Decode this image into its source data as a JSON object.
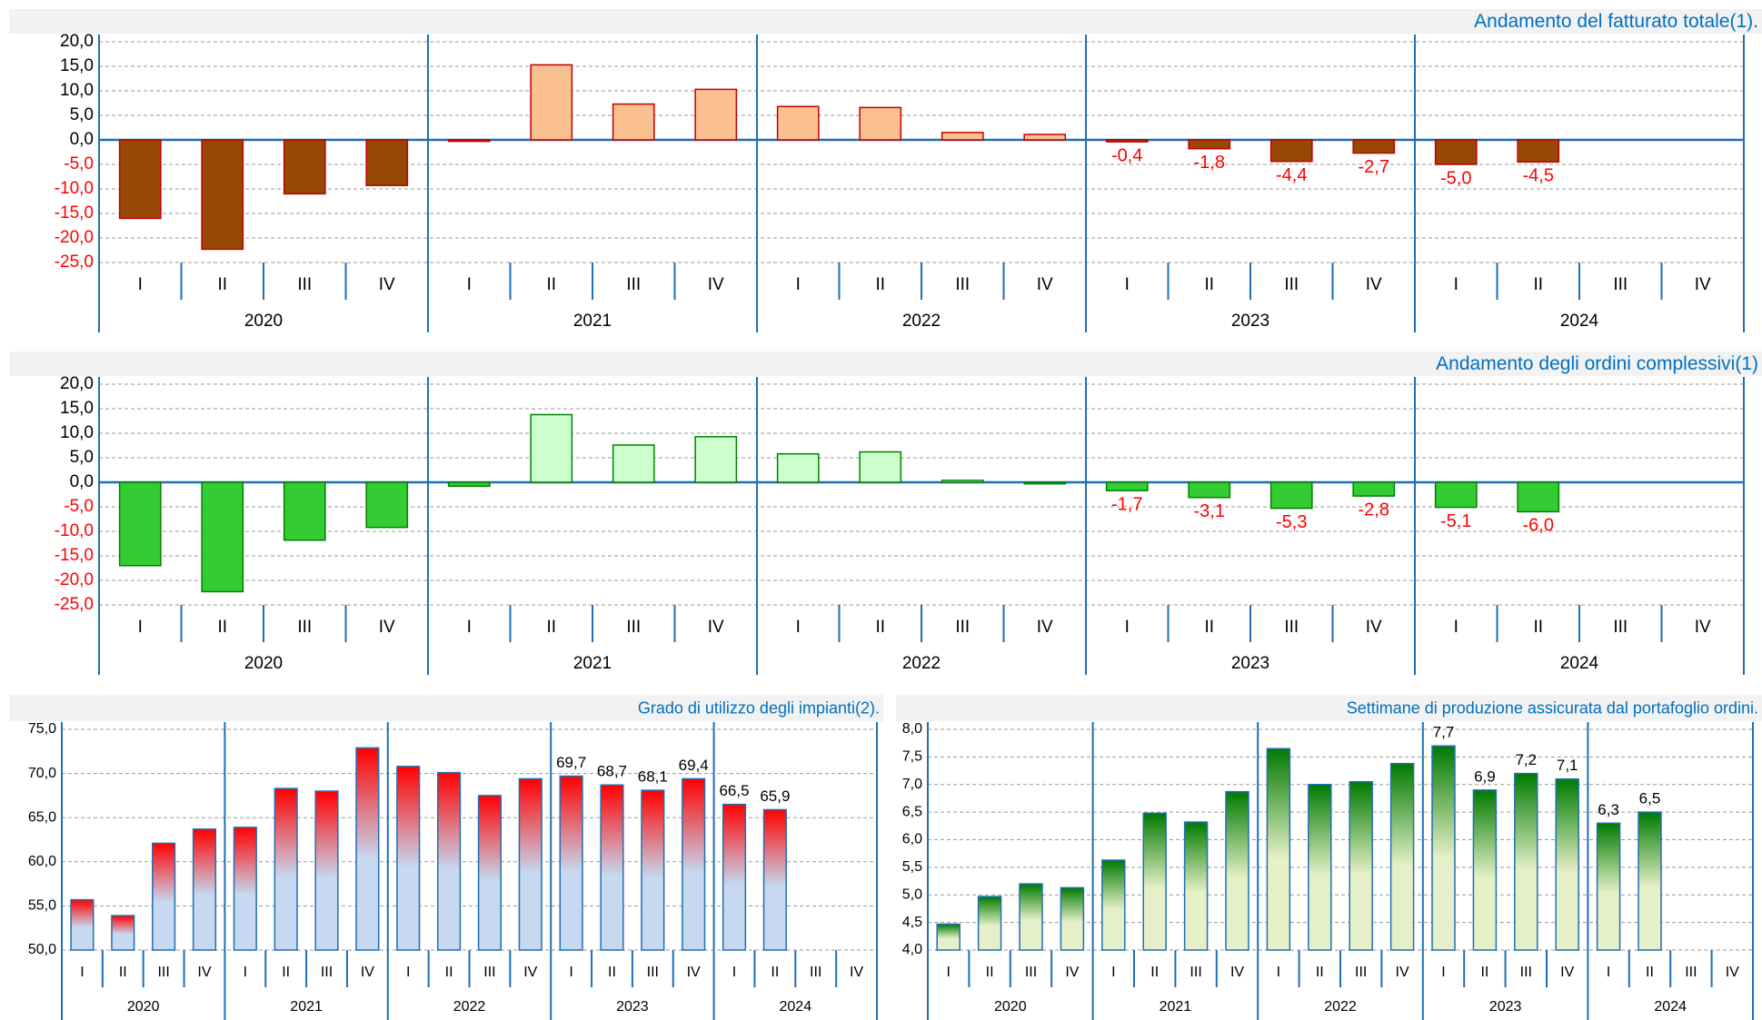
{
  "chart_data": [
    {
      "type": "bar",
      "title": "Andamento del fatturato totale(1).",
      "categories": [
        "I",
        "II",
        "III",
        "IV",
        "I",
        "II",
        "III",
        "IV",
        "I",
        "II",
        "III",
        "IV",
        "I",
        "II",
        "III",
        "IV",
        "I",
        "II",
        "III",
        "IV"
      ],
      "groups": [
        "2020",
        "2021",
        "2022",
        "2023",
        "2024"
      ],
      "values": [
        -16.0,
        -22.3,
        -11.0,
        -9.3,
        -0.3,
        15.3,
        7.3,
        10.3,
        6.8,
        6.6,
        1.5,
        1.1,
        -0.4,
        -1.8,
        -4.4,
        -2.7,
        -5.0,
        -4.5,
        null,
        null
      ],
      "value_labels": [
        null,
        null,
        null,
        null,
        null,
        null,
        null,
        null,
        null,
        null,
        null,
        null,
        "-0,4",
        "-1,8",
        "-4,4",
        "-2,7",
        "-5,0",
        "-4,5",
        null,
        null
      ],
      "ylim": [
        -25,
        20
      ],
      "yticks": [
        {
          "value": 20,
          "label": "20,0"
        },
        {
          "value": 15,
          "label": "15,0"
        },
        {
          "value": 10,
          "label": "10,0"
        },
        {
          "value": 5,
          "label": "5,0"
        },
        {
          "value": 0,
          "label": "0,0"
        },
        {
          "value": -5,
          "label": "-5,0"
        },
        {
          "value": -10,
          "label": "-10,0"
        },
        {
          "value": -15,
          "label": "-15,0"
        },
        {
          "value": -20,
          "label": "-20,0"
        },
        {
          "value": -25,
          "label": "-25,0"
        }
      ],
      "color_positive": "#fac090",
      "color_negative": "#974706",
      "edge_color": "#c00000",
      "grid": true
    },
    {
      "type": "bar",
      "title": "Andamento degli ordini complessivi(1)",
      "categories": [
        "I",
        "II",
        "III",
        "IV",
        "I",
        "II",
        "III",
        "IV",
        "I",
        "II",
        "III",
        "IV",
        "I",
        "II",
        "III",
        "IV",
        "I",
        "II",
        "III",
        "IV"
      ],
      "groups": [
        "2020",
        "2021",
        "2022",
        "2023",
        "2024"
      ],
      "values": [
        -17.0,
        -22.3,
        -11.8,
        -9.2,
        -0.8,
        13.8,
        7.6,
        9.3,
        5.8,
        6.2,
        0.4,
        -0.3,
        -1.7,
        -3.1,
        -5.3,
        -2.8,
        -5.1,
        -6.0,
        null,
        null
      ],
      "value_labels": [
        null,
        null,
        null,
        null,
        null,
        null,
        null,
        null,
        null,
        null,
        null,
        null,
        "-1,7",
        "-3,1",
        "-5,3",
        "-2,8",
        "-5,1",
        "-6,0",
        null,
        null
      ],
      "ylim": [
        -25,
        20
      ],
      "yticks": [
        {
          "value": 20,
          "label": "20,0"
        },
        {
          "value": 15,
          "label": "15,0"
        },
        {
          "value": 10,
          "label": "10,0"
        },
        {
          "value": 5,
          "label": "5,0"
        },
        {
          "value": 0,
          "label": "0,0"
        },
        {
          "value": -5,
          "label": "-5,0"
        },
        {
          "value": -10,
          "label": "-10,0"
        },
        {
          "value": -15,
          "label": "-15,0"
        },
        {
          "value": -20,
          "label": "-20,0"
        },
        {
          "value": -25,
          "label": "-25,0"
        }
      ],
      "color_positive": "#ccffcc",
      "color_negative": "#33cc33",
      "edge_color": "#008000",
      "grid": true
    },
    {
      "type": "bar",
      "title": "Grado di utilizzo degli impianti(2).",
      "categories": [
        "I",
        "II",
        "III",
        "IV",
        "I",
        "II",
        "III",
        "IV",
        "I",
        "II",
        "III",
        "IV",
        "I",
        "II",
        "III",
        "IV",
        "I",
        "II",
        "III",
        "IV"
      ],
      "groups": [
        "2020",
        "2021",
        "2022",
        "2023",
        "2024"
      ],
      "values": [
        55.7,
        53.9,
        62.1,
        63.7,
        63.9,
        68.3,
        68.0,
        72.9,
        70.8,
        70.1,
        67.5,
        69.4,
        69.7,
        68.7,
        68.1,
        69.4,
        66.5,
        65.9,
        null,
        null
      ],
      "value_labels": [
        null,
        null,
        null,
        null,
        null,
        null,
        null,
        null,
        null,
        null,
        null,
        null,
        "69,7",
        "68,7",
        "68,1",
        "69,4",
        "66,5",
        "65,9",
        null,
        null
      ],
      "ylim": [
        50,
        75
      ],
      "yticks": [
        {
          "value": 75,
          "label": "75,0"
        },
        {
          "value": 70,
          "label": "70,0"
        },
        {
          "value": 65,
          "label": "65,0"
        },
        {
          "value": 60,
          "label": "60,0"
        },
        {
          "value": 55,
          "label": "55,0"
        },
        {
          "value": 50,
          "label": "50,0"
        }
      ],
      "gradient": [
        "#ff0000",
        "#c6d9f0"
      ],
      "edge_color": "#1f6fb5",
      "grid": true
    },
    {
      "type": "bar",
      "title": "Settimane di produzione assicurata dal portafoglio ordini.",
      "categories": [
        "I",
        "II",
        "III",
        "IV",
        "I",
        "II",
        "III",
        "IV",
        "I",
        "II",
        "III",
        "IV",
        "I",
        "II",
        "III",
        "IV",
        "I",
        "II",
        "III",
        "IV"
      ],
      "groups": [
        "2020",
        "2021",
        "2022",
        "2023",
        "2024"
      ],
      "values": [
        4.47,
        4.97,
        5.2,
        5.13,
        5.63,
        6.48,
        6.32,
        6.87,
        7.65,
        7.0,
        7.05,
        7.38,
        7.7,
        6.9,
        7.2,
        7.1,
        6.3,
        6.5,
        null,
        null
      ],
      "value_labels": [
        null,
        null,
        null,
        null,
        null,
        null,
        null,
        null,
        null,
        null,
        null,
        null,
        "7,7",
        "6,9",
        "7,2",
        "7,1",
        "6,3",
        "6,5",
        null,
        null
      ],
      "ylim": [
        4,
        8
      ],
      "yticks": [
        {
          "value": 8,
          "label": "8,0"
        },
        {
          "value": 7.5,
          "label": "7,5"
        },
        {
          "value": 7,
          "label": "7,0"
        },
        {
          "value": 6.5,
          "label": "6,5"
        },
        {
          "value": 6,
          "label": "6,0"
        },
        {
          "value": 5.5,
          "label": "5,5"
        },
        {
          "value": 5,
          "label": "5,0"
        },
        {
          "value": 4.5,
          "label": "4,5"
        },
        {
          "value": 4,
          "label": "4,0"
        }
      ],
      "gradient": [
        "#007a00",
        "#e6f0c8"
      ],
      "edge_color": "#1f6fb5",
      "grid": true
    }
  ]
}
